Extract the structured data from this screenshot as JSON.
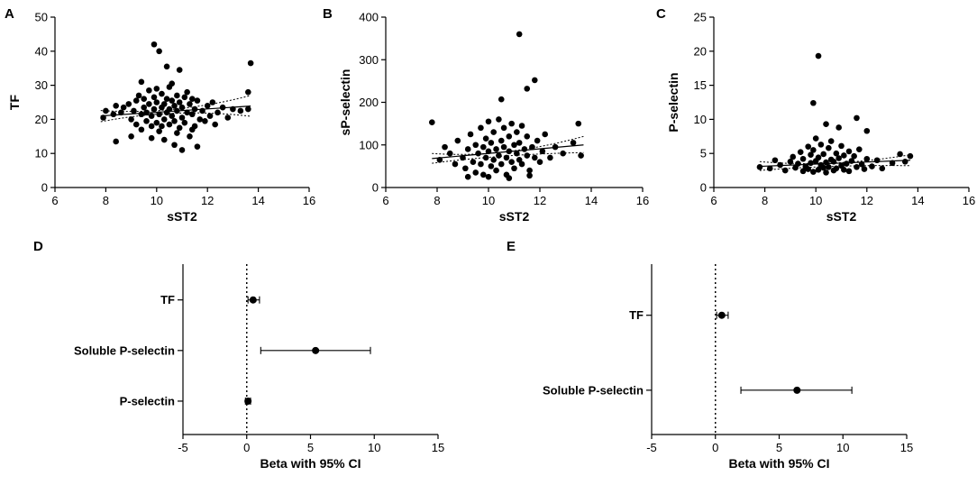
{
  "chart_data": [
    {
      "panel": "A",
      "type": "scatter",
      "xlabel": "sST2",
      "ylabel": "TF",
      "xlim": [
        6,
        16
      ],
      "ylim": [
        0,
        50
      ],
      "xticks": [
        6,
        8,
        10,
        12,
        14,
        16
      ],
      "yticks": [
        0,
        10,
        20,
        30,
        40,
        50
      ],
      "fit": {
        "x1": 7.8,
        "y1": 21.0,
        "x2": 13.7,
        "y2": 23.9,
        "ci_upper": [
          [
            7.8,
            22.6
          ],
          [
            10.7,
            23.0
          ],
          [
            13.7,
            27.0
          ]
        ],
        "ci_lower": [
          [
            7.8,
            19.3
          ],
          [
            10.7,
            21.8
          ],
          [
            13.7,
            20.9
          ]
        ]
      },
      "points": [
        [
          9.9,
          42.0
        ],
        [
          10.1,
          40.0
        ],
        [
          10.4,
          35.5
        ],
        [
          10.9,
          34.5
        ],
        [
          13.7,
          36.5
        ],
        [
          13.6,
          28.0
        ],
        [
          9.4,
          31.0
        ],
        [
          10.6,
          30.5
        ],
        [
          8.0,
          22.5
        ],
        [
          7.9,
          20.5
        ],
        [
          8.3,
          21.5
        ],
        [
          8.4,
          24.0
        ],
        [
          8.6,
          22.0
        ],
        [
          8.7,
          23.5
        ],
        [
          8.9,
          24.5
        ],
        [
          9.0,
          20.0
        ],
        [
          9.1,
          22.5
        ],
        [
          9.2,
          18.5
        ],
        [
          9.2,
          25.5
        ],
        [
          9.3,
          27.0
        ],
        [
          9.4,
          21.5
        ],
        [
          9.4,
          17.0
        ],
        [
          9.5,
          23.5
        ],
        [
          9.5,
          26.0
        ],
        [
          9.6,
          19.5
        ],
        [
          9.6,
          22.0
        ],
        [
          9.7,
          28.5
        ],
        [
          9.7,
          24.5
        ],
        [
          9.8,
          18.0
        ],
        [
          9.8,
          21.0
        ],
        [
          9.9,
          26.5
        ],
        [
          9.9,
          23.0
        ],
        [
          10.0,
          19.0
        ],
        [
          10.0,
          25.0
        ],
        [
          10.0,
          29.0
        ],
        [
          10.1,
          21.5
        ],
        [
          10.1,
          16.5
        ],
        [
          10.2,
          23.5
        ],
        [
          10.2,
          27.5
        ],
        [
          10.3,
          20.0
        ],
        [
          10.3,
          24.5
        ],
        [
          10.3,
          14.0
        ],
        [
          10.4,
          22.0
        ],
        [
          10.4,
          26.0
        ],
        [
          10.5,
          18.5
        ],
        [
          10.5,
          23.0
        ],
        [
          10.5,
          29.5
        ],
        [
          10.6,
          21.0
        ],
        [
          10.6,
          25.5
        ],
        [
          10.7,
          19.5
        ],
        [
          10.7,
          24.0
        ],
        [
          10.7,
          12.5
        ],
        [
          10.8,
          27.0
        ],
        [
          10.8,
          22.5
        ],
        [
          10.9,
          17.5
        ],
        [
          10.9,
          25.0
        ],
        [
          11.0,
          20.5
        ],
        [
          11.0,
          23.5
        ],
        [
          11.0,
          11.0
        ],
        [
          11.1,
          26.5
        ],
        [
          11.1,
          19.0
        ],
        [
          11.2,
          22.0
        ],
        [
          11.2,
          28.0
        ],
        [
          11.3,
          24.5
        ],
        [
          11.3,
          15.0
        ],
        [
          11.4,
          21.5
        ],
        [
          11.4,
          26.0
        ],
        [
          11.5,
          18.0
        ],
        [
          11.5,
          23.0
        ],
        [
          11.6,
          12.0
        ],
        [
          11.6,
          25.5
        ],
        [
          11.7,
          20.0
        ],
        [
          11.8,
          22.5
        ],
        [
          11.9,
          19.5
        ],
        [
          12.0,
          24.0
        ],
        [
          12.1,
          21.0
        ],
        [
          12.2,
          25.0
        ],
        [
          12.3,
          18.5
        ],
        [
          12.4,
          22.0
        ],
        [
          12.6,
          23.5
        ],
        [
          12.8,
          20.5
        ],
        [
          13.0,
          23.0
        ],
        [
          13.3,
          22.5
        ],
        [
          13.6,
          23.0
        ],
        [
          8.4,
          13.5
        ],
        [
          9.0,
          15.0
        ],
        [
          9.8,
          14.5
        ],
        [
          10.2,
          18.0
        ],
        [
          10.8,
          16.0
        ],
        [
          11.4,
          17.0
        ]
      ]
    },
    {
      "panel": "B",
      "type": "scatter",
      "xlabel": "sST2",
      "ylabel": "sP-selectin",
      "xlim": [
        6,
        16
      ],
      "ylim": [
        0,
        400
      ],
      "xticks": [
        6,
        8,
        10,
        12,
        14,
        16
      ],
      "yticks": [
        0,
        100,
        200,
        300,
        400
      ],
      "fit": {
        "x1": 7.8,
        "y1": 68,
        "x2": 13.7,
        "y2": 100,
        "ci_upper": [
          [
            7.8,
            80
          ],
          [
            10.6,
            84
          ],
          [
            13.7,
            120
          ]
        ],
        "ci_lower": [
          [
            7.8,
            57
          ],
          [
            10.6,
            74
          ],
          [
            13.7,
            82
          ]
        ]
      },
      "points": [
        [
          11.2,
          360
        ],
        [
          11.8,
          252
        ],
        [
          11.5,
          232
        ],
        [
          10.5,
          207
        ],
        [
          7.8,
          153
        ],
        [
          13.5,
          150
        ],
        [
          8.1,
          65
        ],
        [
          8.3,
          95
        ],
        [
          8.5,
          80
        ],
        [
          8.7,
          55
        ],
        [
          8.8,
          110
        ],
        [
          9.0,
          70
        ],
        [
          9.1,
          45
        ],
        [
          9.2,
          90
        ],
        [
          9.3,
          125
        ],
        [
          9.4,
          60
        ],
        [
          9.5,
          100
        ],
        [
          9.5,
          35
        ],
        [
          9.6,
          80
        ],
        [
          9.7,
          140
        ],
        [
          9.7,
          55
        ],
        [
          9.8,
          95
        ],
        [
          9.8,
          30
        ],
        [
          9.9,
          115
        ],
        [
          9.9,
          70
        ],
        [
          10.0,
          155
        ],
        [
          10.0,
          85
        ],
        [
          10.1,
          50
        ],
        [
          10.1,
          105
        ],
        [
          10.2,
          130
        ],
        [
          10.2,
          65
        ],
        [
          10.3,
          90
        ],
        [
          10.3,
          40
        ],
        [
          10.4,
          160
        ],
        [
          10.4,
          75
        ],
        [
          10.5,
          110
        ],
        [
          10.5,
          55
        ],
        [
          10.6,
          95
        ],
        [
          10.6,
          140
        ],
        [
          10.7,
          70
        ],
        [
          10.7,
          30
        ],
        [
          10.8,
          120
        ],
        [
          10.8,
          85
        ],
        [
          10.9,
          150
        ],
        [
          10.9,
          60
        ],
        [
          11.0,
          100
        ],
        [
          11.0,
          45
        ],
        [
          11.1,
          130
        ],
        [
          11.1,
          80
        ],
        [
          11.2,
          65
        ],
        [
          11.2,
          105
        ],
        [
          11.3,
          145
        ],
        [
          11.3,
          55
        ],
        [
          11.4,
          90
        ],
        [
          11.5,
          75
        ],
        [
          11.5,
          120
        ],
        [
          11.6,
          40
        ],
        [
          11.7,
          95
        ],
        [
          11.8,
          70
        ],
        [
          11.9,
          110
        ],
        [
          12.0,
          60
        ],
        [
          12.1,
          85
        ],
        [
          12.2,
          125
        ],
        [
          12.4,
          70
        ],
        [
          12.6,
          95
        ],
        [
          12.9,
          80
        ],
        [
          13.3,
          105
        ],
        [
          13.6,
          75
        ],
        [
          9.2,
          25
        ],
        [
          10.0,
          25
        ],
        [
          10.8,
          22
        ],
        [
          11.6,
          28
        ]
      ]
    },
    {
      "panel": "C",
      "type": "scatter",
      "xlabel": "sST2",
      "ylabel": "P-selectin",
      "xlim": [
        6,
        16
      ],
      "ylim": [
        0,
        25
      ],
      "xticks": [
        6,
        8,
        10,
        12,
        14,
        16
      ],
      "yticks": [
        0,
        5,
        10,
        15,
        20,
        25
      ],
      "fit": {
        "x1": 7.8,
        "y1": 3.1,
        "x2": 13.7,
        "y2": 4.0,
        "ci_upper": [
          [
            7.8,
            3.8
          ],
          [
            10.6,
            3.6
          ],
          [
            13.7,
            4.8
          ]
        ],
        "ci_lower": [
          [
            7.8,
            2.5
          ],
          [
            10.6,
            3.1
          ],
          [
            13.7,
            3.2
          ]
        ]
      },
      "points": [
        [
          10.1,
          19.3
        ],
        [
          9.9,
          12.4
        ],
        [
          10.4,
          9.3
        ],
        [
          11.6,
          10.2
        ],
        [
          10.9,
          8.8
        ],
        [
          12.0,
          8.3
        ],
        [
          7.8,
          3.0
        ],
        [
          8.2,
          2.8
        ],
        [
          8.4,
          4.0
        ],
        [
          8.6,
          3.3
        ],
        [
          8.8,
          2.5
        ],
        [
          9.0,
          3.8
        ],
        [
          9.1,
          4.5
        ],
        [
          9.2,
          2.9
        ],
        [
          9.3,
          3.5
        ],
        [
          9.4,
          5.2
        ],
        [
          9.5,
          2.4
        ],
        [
          9.5,
          4.2
        ],
        [
          9.6,
          3.1
        ],
        [
          9.7,
          6.0
        ],
        [
          9.7,
          2.7
        ],
        [
          9.8,
          4.8
        ],
        [
          9.8,
          3.6
        ],
        [
          9.9,
          2.3
        ],
        [
          9.9,
          5.5
        ],
        [
          10.0,
          3.9
        ],
        [
          10.0,
          7.2
        ],
        [
          10.1,
          2.6
        ],
        [
          10.1,
          4.4
        ],
        [
          10.2,
          3.3
        ],
        [
          10.2,
          6.3
        ],
        [
          10.3,
          2.9
        ],
        [
          10.3,
          4.9
        ],
        [
          10.4,
          3.7
        ],
        [
          10.4,
          2.2
        ],
        [
          10.5,
          5.8
        ],
        [
          10.5,
          3.0
        ],
        [
          10.6,
          4.1
        ],
        [
          10.6,
          6.8
        ],
        [
          10.7,
          2.5
        ],
        [
          10.7,
          3.8
        ],
        [
          10.8,
          5.0
        ],
        [
          10.8,
          2.8
        ],
        [
          10.9,
          4.3
        ],
        [
          11.0,
          3.2
        ],
        [
          11.0,
          6.1
        ],
        [
          11.1,
          2.6
        ],
        [
          11.1,
          4.7
        ],
        [
          11.2,
          3.5
        ],
        [
          11.3,
          5.3
        ],
        [
          11.3,
          2.4
        ],
        [
          11.4,
          3.9
        ],
        [
          11.5,
          4.6
        ],
        [
          11.6,
          3.0
        ],
        [
          11.7,
          5.6
        ],
        [
          11.8,
          3.4
        ],
        [
          11.9,
          2.7
        ],
        [
          12.0,
          4.2
        ],
        [
          12.2,
          3.1
        ],
        [
          12.4,
          4.0
        ],
        [
          12.6,
          2.8
        ],
        [
          13.0,
          3.6
        ],
        [
          13.3,
          4.9
        ],
        [
          13.7,
          4.6
        ],
        [
          13.5,
          3.8
        ]
      ]
    },
    {
      "panel": "D",
      "type": "forest",
      "xlabel": "Beta with 95% CI",
      "xlim": [
        -5,
        15
      ],
      "xticks": [
        -5,
        0,
        5,
        10,
        15
      ],
      "reference_line": 0,
      "rows": [
        {
          "label": "TF",
          "beta": 0.5,
          "lo": 0.1,
          "hi": 1.0
        },
        {
          "label": "Soluble P-selectin",
          "beta": 5.4,
          "lo": 1.1,
          "hi": 9.7
        },
        {
          "label": "P-selectin",
          "beta": 0.1,
          "lo": -0.1,
          "hi": 0.3
        }
      ]
    },
    {
      "panel": "E",
      "type": "forest",
      "xlabel": "Beta with 95% CI",
      "xlim": [
        -5,
        15
      ],
      "xticks": [
        -5,
        0,
        5,
        10,
        15
      ],
      "reference_line": 0,
      "rows": [
        {
          "label": "TF",
          "beta": 0.5,
          "lo": 0.1,
          "hi": 1.0
        },
        {
          "label": "Soluble P-selectin",
          "beta": 6.4,
          "lo": 2.0,
          "hi": 10.7
        }
      ]
    }
  ]
}
